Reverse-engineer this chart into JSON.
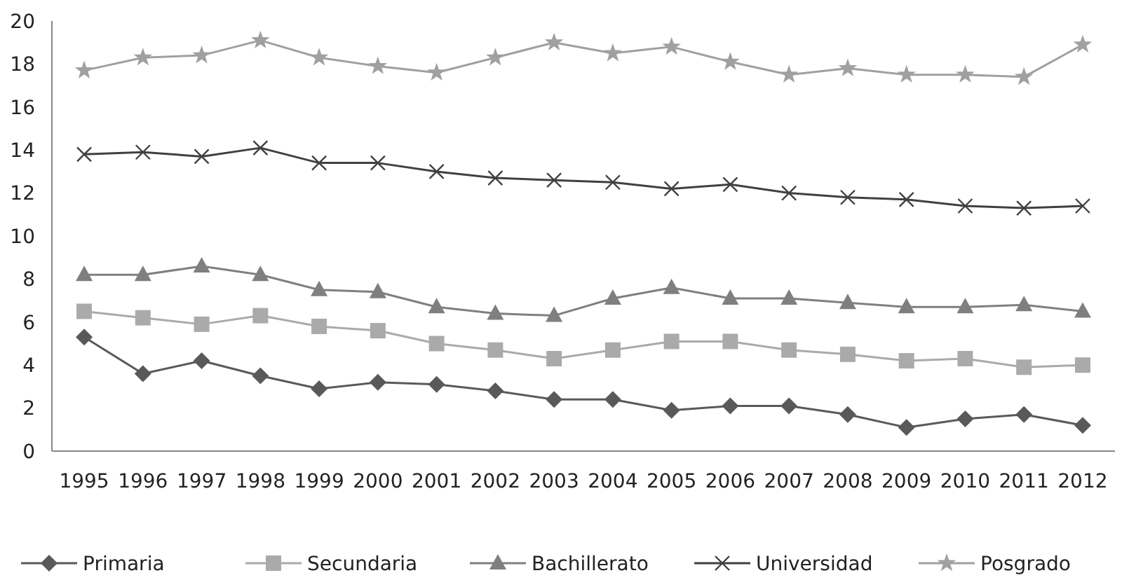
{
  "chart_data": {
    "type": "line",
    "categories": [
      "1995",
      "1996",
      "1997",
      "1998",
      "1999",
      "2000",
      "2001",
      "2002",
      "2003",
      "2004",
      "2005",
      "2006",
      "2007",
      "2008",
      "2009",
      "2010",
      "2011",
      "2012"
    ],
    "series": [
      {
        "name": "Primaria",
        "color": "#595959",
        "marker": "diamond",
        "values": [
          5.3,
          3.6,
          4.2,
          3.5,
          2.9,
          3.2,
          3.1,
          2.8,
          2.4,
          2.4,
          1.9,
          2.1,
          2.1,
          1.7,
          1.1,
          1.5,
          1.7,
          1.2
        ]
      },
      {
        "name": "Secundaria",
        "color": "#aaaaaa",
        "marker": "square",
        "values": [
          6.5,
          6.2,
          5.9,
          6.3,
          5.8,
          5.6,
          5.0,
          4.7,
          4.3,
          4.7,
          5.1,
          5.1,
          4.7,
          4.5,
          4.2,
          4.3,
          3.9,
          4.0
        ]
      },
      {
        "name": "Bachillerato",
        "color": "#7f7f7f",
        "marker": "triangle",
        "values": [
          8.2,
          8.2,
          8.6,
          8.2,
          7.5,
          7.4,
          6.7,
          6.4,
          6.3,
          7.1,
          7.6,
          7.1,
          7.1,
          6.9,
          6.7,
          6.7,
          6.8,
          6.5
        ]
      },
      {
        "name": "Universidad",
        "color": "#404040",
        "marker": "cross",
        "values": [
          13.8,
          13.9,
          13.7,
          14.1,
          13.4,
          13.4,
          13.0,
          12.7,
          12.6,
          12.5,
          12.2,
          12.4,
          12.0,
          11.8,
          11.7,
          11.4,
          11.3,
          11.4
        ]
      },
      {
        "name": "Posgrado",
        "color": "#a0a0a0",
        "marker": "star",
        "values": [
          17.7,
          18.3,
          18.4,
          19.1,
          18.3,
          17.9,
          17.6,
          18.3,
          19.0,
          18.5,
          18.8,
          18.1,
          17.5,
          17.8,
          17.5,
          17.5,
          17.4,
          18.9
        ]
      }
    ],
    "ylim": [
      0,
      20
    ],
    "yticks": [
      0,
      2,
      4,
      6,
      8,
      10,
      12,
      14,
      16,
      18,
      20
    ],
    "grid": false,
    "legend": "bottom"
  }
}
